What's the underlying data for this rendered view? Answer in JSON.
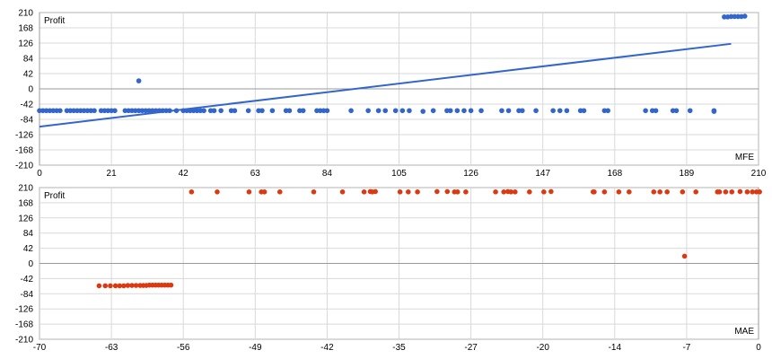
{
  "colors": {
    "mfe_points": "#3366cc",
    "mfe_line": "#3366cc",
    "mae_points": "#dc3912",
    "grid": "#d9d9d9",
    "axis": "#999999",
    "frame": "#b3b3b3"
  },
  "chart_data": [
    {
      "type": "scatter",
      "title": "",
      "ylabel": "Profit",
      "xlabel": "MFE",
      "xlim": [
        0,
        210
      ],
      "ylim": [
        -210,
        210
      ],
      "x_ticks": [
        "0",
        "21",
        "42",
        "63",
        "84",
        "105",
        "126",
        "147",
        "168",
        "189",
        "210"
      ],
      "y_ticks": [
        "210",
        "168",
        "126",
        "84",
        "42",
        "0",
        "-42",
        "-84",
        "-126",
        "-168",
        "-210"
      ],
      "grid": true,
      "trendline": {
        "x": [
          0,
          202
        ],
        "y": [
          -104,
          124
        ]
      },
      "series": [
        {
          "values": [
            [
              0,
              -60
            ],
            [
              1,
              -60
            ],
            [
              2,
              -60
            ],
            [
              3,
              -60
            ],
            [
              4,
              -60
            ],
            [
              5,
              -60
            ],
            [
              6,
              -60
            ],
            [
              8,
              -60
            ],
            [
              9,
              -60
            ],
            [
              10,
              -60
            ],
            [
              11,
              -60
            ],
            [
              12,
              -60
            ],
            [
              13,
              -60
            ],
            [
              14,
              -60
            ],
            [
              15,
              -60
            ],
            [
              16,
              -60
            ],
            [
              18,
              -60
            ],
            [
              19,
              -60
            ],
            [
              20,
              -60
            ],
            [
              21,
              -60
            ],
            [
              22,
              -60
            ],
            [
              25,
              -60
            ],
            [
              26,
              -60
            ],
            [
              27,
              -60
            ],
            [
              28,
              -60
            ],
            [
              29,
              -60
            ],
            [
              30,
              -60
            ],
            [
              31,
              -60
            ],
            [
              32,
              -60
            ],
            [
              33,
              -60
            ],
            [
              34,
              -60
            ],
            [
              35,
              -60
            ],
            [
              36,
              -60
            ],
            [
              37,
              -60
            ],
            [
              38,
              -60
            ],
            [
              40,
              -60
            ],
            [
              42,
              -60
            ],
            [
              43,
              -60
            ],
            [
              44,
              -60
            ],
            [
              45,
              -60
            ],
            [
              46,
              -60
            ],
            [
              47,
              -60
            ],
            [
              48,
              -60
            ],
            [
              50,
              -60
            ],
            [
              51,
              -60
            ],
            [
              53,
              -60
            ],
            [
              56,
              -60
            ],
            [
              57,
              -60
            ],
            [
              61,
              -60
            ],
            [
              64,
              -60
            ],
            [
              65,
              -60
            ],
            [
              68,
              -60
            ],
            [
              72,
              -60
            ],
            [
              73,
              -60
            ],
            [
              76,
              -60
            ],
            [
              77,
              -60
            ],
            [
              81,
              -60
            ],
            [
              82,
              -60
            ],
            [
              83,
              -60
            ],
            [
              84,
              -60
            ],
            [
              91,
              -60
            ],
            [
              96,
              -60
            ],
            [
              99,
              -60
            ],
            [
              101,
              -60
            ],
            [
              104,
              -60
            ],
            [
              106,
              -60
            ],
            [
              108,
              -60
            ],
            [
              112,
              -62
            ],
            [
              115,
              -60
            ],
            [
              119,
              -60
            ],
            [
              120,
              -60
            ],
            [
              122,
              -60
            ],
            [
              124,
              -60
            ],
            [
              126,
              -60
            ],
            [
              129,
              -60
            ],
            [
              135,
              -60
            ],
            [
              137,
              -60
            ],
            [
              140,
              -60
            ],
            [
              141,
              -60
            ],
            [
              145,
              -60
            ],
            [
              150,
              -60
            ],
            [
              152,
              -60
            ],
            [
              154,
              -60
            ],
            [
              158,
              -60
            ],
            [
              159,
              -60
            ],
            [
              165,
              -60
            ],
            [
              166,
              -60
            ],
            [
              177,
              -60
            ],
            [
              179,
              -60
            ],
            [
              180,
              -60
            ],
            [
              185,
              -60
            ],
            [
              186,
              -60
            ],
            [
              190,
              -60
            ],
            [
              197,
              -60
            ],
            [
              197,
              -62
            ],
            [
              29,
              22
            ],
            [
              200,
              198
            ],
            [
              201,
              198
            ],
            [
              202,
              199
            ],
            [
              203,
              199
            ],
            [
              204,
              199
            ],
            [
              205,
              199
            ],
            [
              206,
              200
            ]
          ]
        }
      ]
    },
    {
      "type": "scatter",
      "title": "",
      "ylabel": "Profit",
      "xlabel": "MAE",
      "xlim": [
        -70,
        0
      ],
      "ylim": [
        -210,
        210
      ],
      "x_ticks": [
        "-70",
        "-63",
        "-56",
        "-49",
        "-42",
        "-35",
        "-27",
        "-20",
        "-14",
        "-7",
        "0"
      ],
      "y_ticks": [
        "210",
        "168",
        "126",
        "84",
        "42",
        "0",
        "-42",
        "-84",
        "-126",
        "-168",
        "-210"
      ],
      "grid": true,
      "series": [
        {
          "values": [
            [
              -64.2,
              -62
            ],
            [
              -63.6,
              -62
            ],
            [
              -63.1,
              -62
            ],
            [
              -62.6,
              -62
            ],
            [
              -62.2,
              -62
            ],
            [
              -61.8,
              -62
            ],
            [
              -61.4,
              -61
            ],
            [
              -61.0,
              -61
            ],
            [
              -60.6,
              -61
            ],
            [
              -60.2,
              -61
            ],
            [
              -59.9,
              -61
            ],
            [
              -59.6,
              -61
            ],
            [
              -59.3,
              -60
            ],
            [
              -59.0,
              -60
            ],
            [
              -58.7,
              -60
            ],
            [
              -58.4,
              -60
            ],
            [
              -58.1,
              -60
            ],
            [
              -57.8,
              -60
            ],
            [
              -57.5,
              -60
            ],
            [
              -57.2,
              -60
            ],
            [
              -55.2,
              198
            ],
            [
              -52.7,
              198
            ],
            [
              -49.6,
              198
            ],
            [
              -48.4,
              198
            ],
            [
              -48.1,
              198
            ],
            [
              -46.6,
              198
            ],
            [
              -43.3,
              198
            ],
            [
              -40.5,
              198
            ],
            [
              -38.4,
              198
            ],
            [
              -37.8,
              199
            ],
            [
              -37.6,
              198
            ],
            [
              -37.3,
              199
            ],
            [
              -34.9,
              198
            ],
            [
              -34.1,
              198
            ],
            [
              -33.2,
              198
            ],
            [
              -31.3,
              199
            ],
            [
              -30.3,
              199
            ],
            [
              -29.6,
              198
            ],
            [
              -29.3,
              198
            ],
            [
              -28.5,
              198
            ],
            [
              -25.6,
              198
            ],
            [
              -24.8,
              198
            ],
            [
              -24.4,
              199
            ],
            [
              -24.1,
              198
            ],
            [
              -23.7,
              198
            ],
            [
              -22.3,
              198
            ],
            [
              -20.9,
              198
            ],
            [
              -20.2,
              199
            ],
            [
              -16.1,
              198
            ],
            [
              -16.0,
              198
            ],
            [
              -15.0,
              198
            ],
            [
              -13.6,
              198
            ],
            [
              -12.6,
              198
            ],
            [
              -10.2,
              198
            ],
            [
              -9.6,
              198
            ],
            [
              -8.9,
              198
            ],
            [
              -7.4,
              198
            ],
            [
              -6.1,
              198
            ],
            [
              -4.0,
              198
            ],
            [
              -3.8,
              198
            ],
            [
              -3.2,
              198
            ],
            [
              -2.6,
              198
            ],
            [
              -1.8,
              199
            ],
            [
              -1.1,
              198
            ],
            [
              -0.6,
              198
            ],
            [
              -0.2,
              198
            ],
            [
              0.1,
              198
            ],
            [
              -7.2,
              20
            ]
          ]
        }
      ]
    }
  ]
}
